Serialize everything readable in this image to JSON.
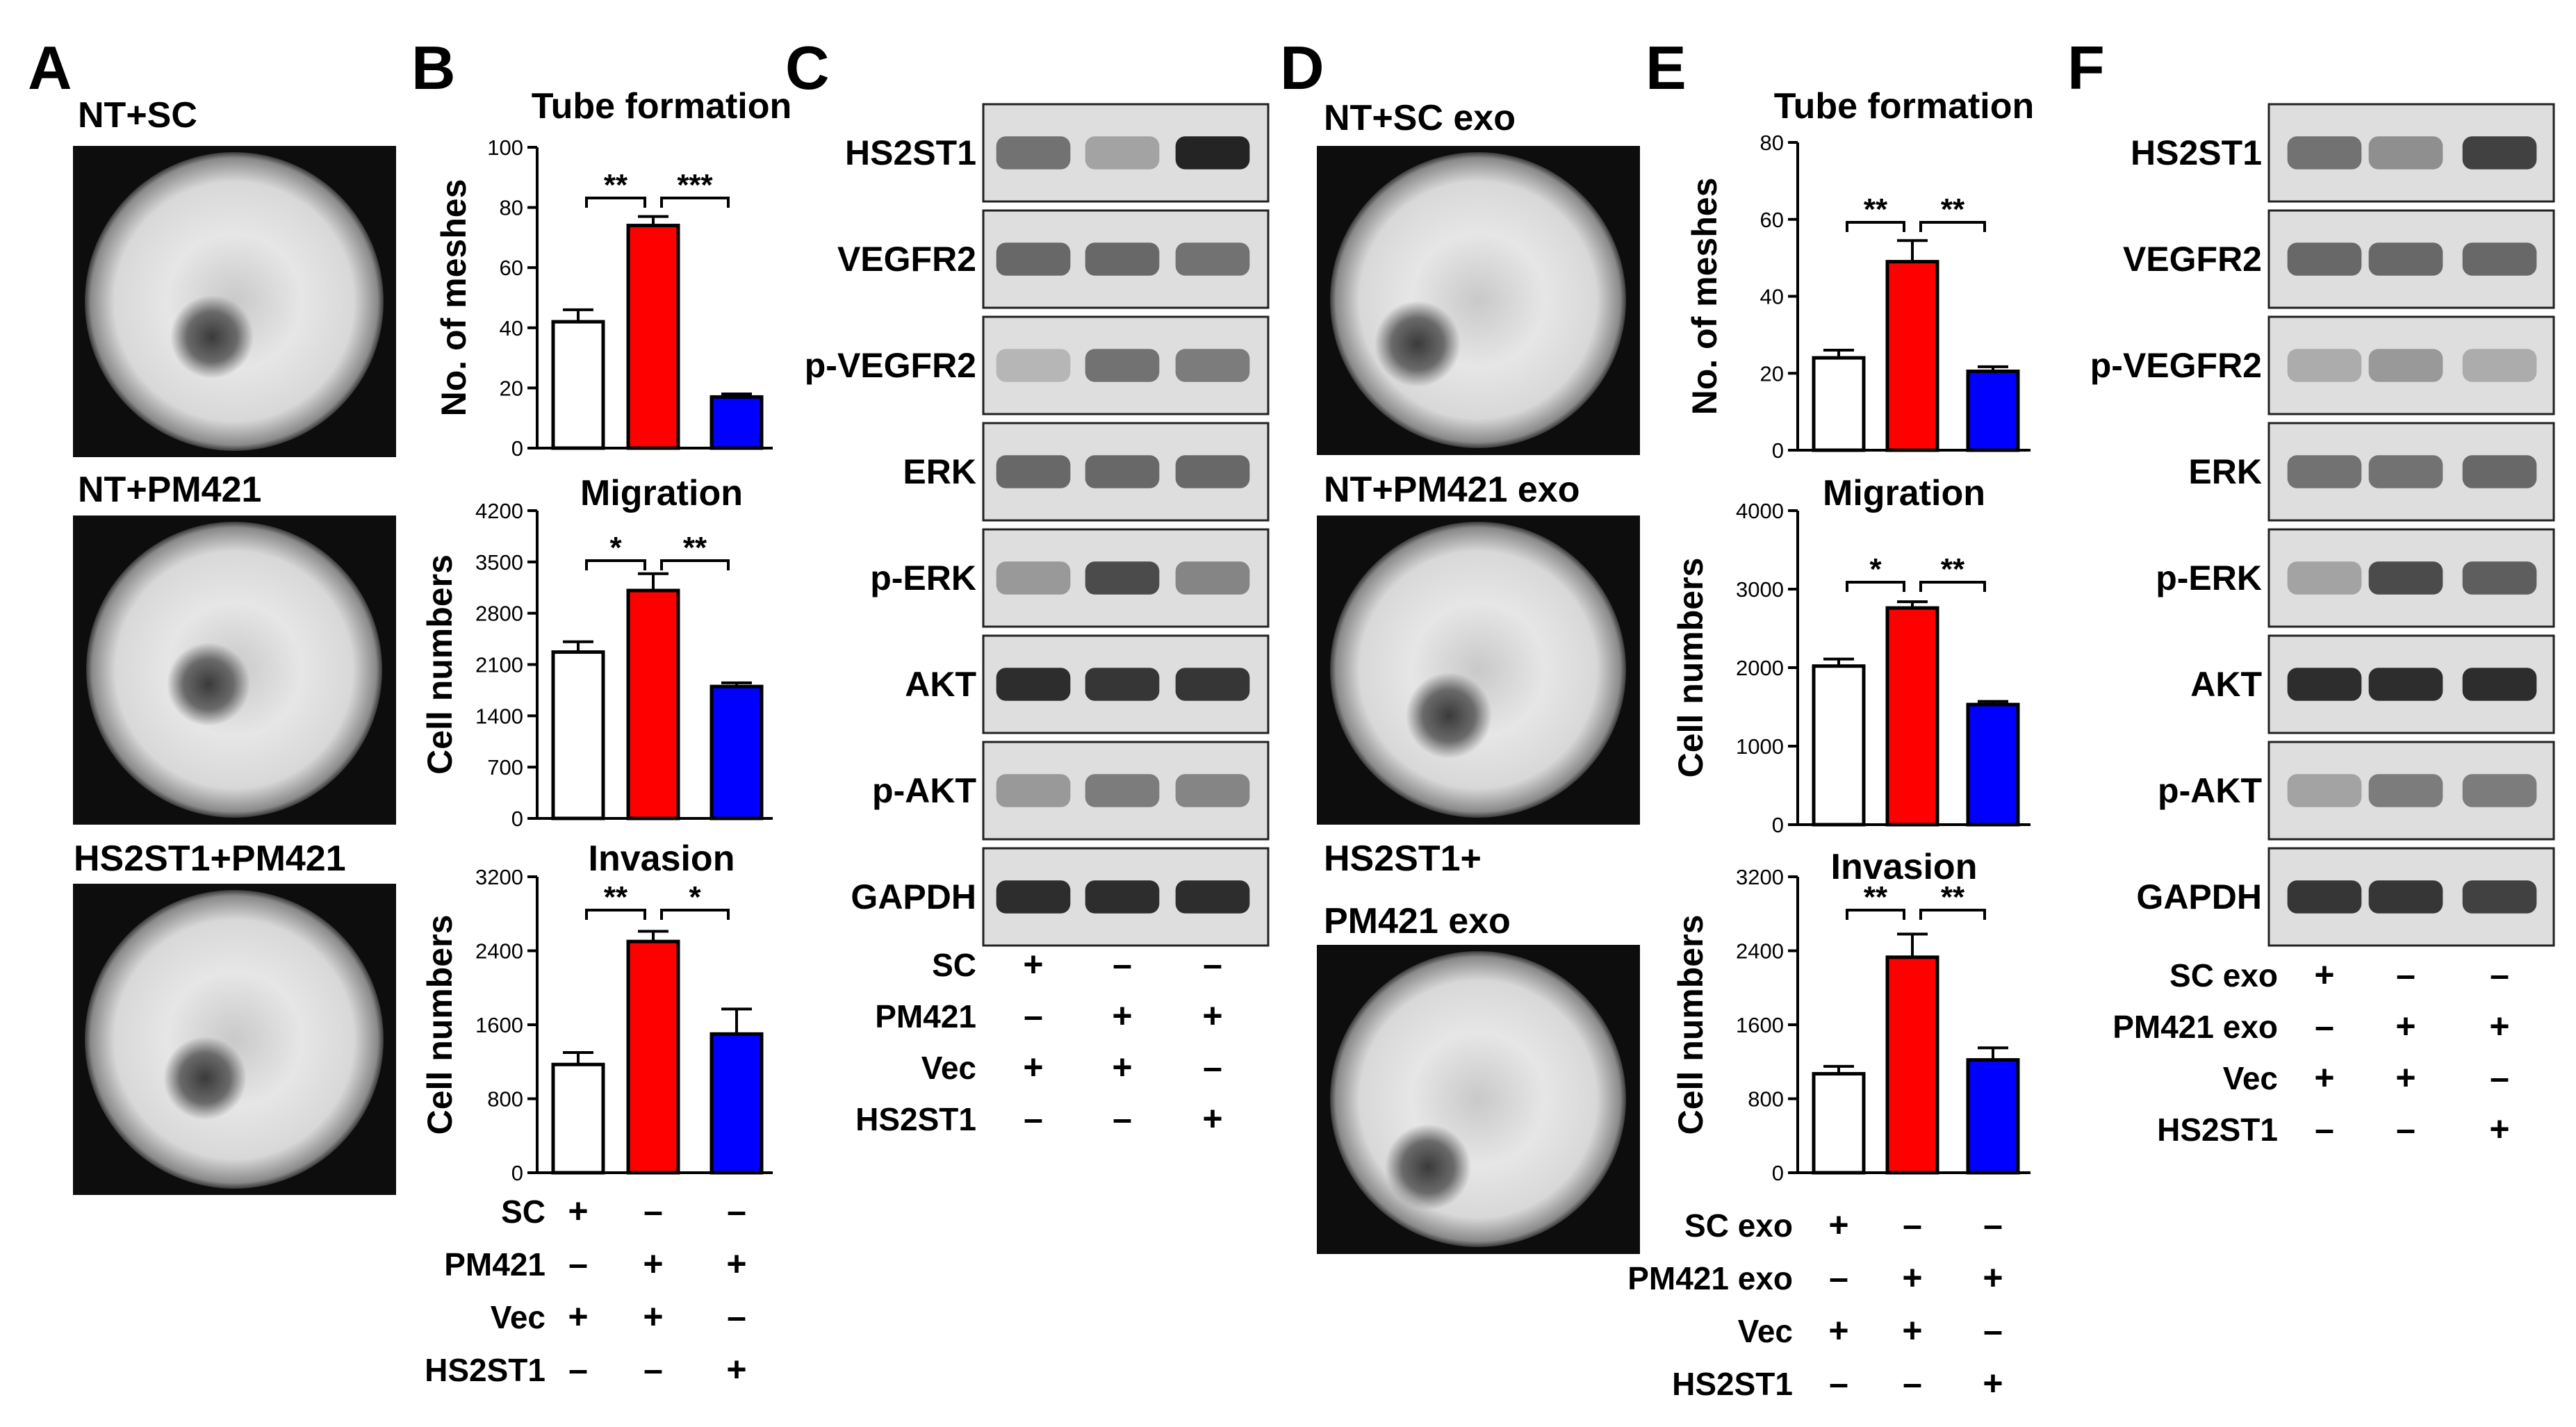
{
  "panels": {
    "A": {
      "label": "A",
      "images": [
        {
          "caption": "NT+SC"
        },
        {
          "caption": "NT+PM421"
        },
        {
          "caption": "HS2ST1+PM421"
        }
      ]
    },
    "B": {
      "label": "B",
      "conditions": [
        {
          "name": "SC",
          "signs": [
            "+",
            "–",
            "–"
          ]
        },
        {
          "name": "PM421",
          "signs": [
            "–",
            "+",
            "+"
          ]
        },
        {
          "name": "Vec",
          "signs": [
            "+",
            "+",
            "–"
          ]
        },
        {
          "name": "HS2ST1",
          "signs": [
            "–",
            "–",
            "+"
          ]
        }
      ]
    },
    "C": {
      "label": "C",
      "blot_labels": [
        "HS2ST1",
        "VEGFR2",
        "p-VEGFR2",
        "ERK",
        "p-ERK",
        "AKT",
        "p-AKT",
        "GAPDH"
      ],
      "conditions": [
        {
          "name": "SC",
          "signs": [
            "+",
            "–",
            "–"
          ]
        },
        {
          "name": "PM421",
          "signs": [
            "–",
            "+",
            "+"
          ]
        },
        {
          "name": "Vec",
          "signs": [
            "+",
            "+",
            "–"
          ]
        },
        {
          "name": "HS2ST1",
          "signs": [
            "–",
            "–",
            "+"
          ]
        }
      ]
    },
    "D": {
      "label": "D",
      "images": [
        {
          "caption": "NT+SC exo"
        },
        {
          "caption": "NT+PM421 exo"
        },
        {
          "caption": "HS2ST1+",
          "caption2": "PM421 exo"
        }
      ]
    },
    "E": {
      "label": "E",
      "conditions": [
        {
          "name": "SC exo",
          "signs": [
            "+",
            "–",
            "–"
          ]
        },
        {
          "name": "PM421 exo",
          "signs": [
            "–",
            "+",
            "+"
          ]
        },
        {
          "name": "Vec",
          "signs": [
            "+",
            "+",
            "–"
          ]
        },
        {
          "name": "HS2ST1",
          "signs": [
            "–",
            "–",
            "+"
          ]
        }
      ]
    },
    "F": {
      "label": "F",
      "blot_labels": [
        "HS2ST1",
        "VEGFR2",
        "p-VEGFR2",
        "ERK",
        "p-ERK",
        "AKT",
        "p-AKT",
        "GAPDH"
      ],
      "conditions": [
        {
          "name": "SC exo",
          "signs": [
            "+",
            "–",
            "–"
          ]
        },
        {
          "name": "PM421 exo",
          "signs": [
            "–",
            "+",
            "+"
          ]
        },
        {
          "name": "Vec",
          "signs": [
            "+",
            "+",
            "–"
          ]
        },
        {
          "name": "HS2ST1",
          "signs": [
            "–",
            "–",
            "+"
          ]
        }
      ]
    }
  },
  "chart_data": [
    {
      "panel": "B",
      "type": "bar",
      "title": "Tube formation",
      "ylabel": "No. of meshes",
      "categories": [
        "SC+Vec",
        "PM421+Vec",
        "PM421+HS2ST1"
      ],
      "values": [
        42,
        74,
        17
      ],
      "errors": [
        4,
        3,
        1
      ],
      "ylim": [
        0,
        100
      ],
      "yticks": [
        "0",
        "20",
        "40",
        "60",
        "80",
        "100"
      ],
      "bar_colors": [
        "#ffffff",
        "#ff0000",
        "#0000ff"
      ],
      "significance": [
        {
          "between": [
            0,
            1
          ],
          "label": "**"
        },
        {
          "between": [
            1,
            2
          ],
          "label": "***"
        }
      ]
    },
    {
      "panel": "B",
      "type": "bar",
      "title": "Migration",
      "ylabel": "Cell numbers",
      "categories": [
        "SC+Vec",
        "PM421+Vec",
        "PM421+HS2ST1"
      ],
      "values": [
        2270,
        3110,
        1800
      ],
      "errors": [
        140,
        230,
        50
      ],
      "ylim": [
        0,
        4200
      ],
      "yticks": [
        "0",
        "700",
        "1400",
        "2100",
        "2800",
        "3500",
        "4200"
      ],
      "bar_colors": [
        "#ffffff",
        "#ff0000",
        "#0000ff"
      ],
      "significance": [
        {
          "between": [
            0,
            1
          ],
          "label": "*"
        },
        {
          "between": [
            1,
            2
          ],
          "label": "**"
        }
      ]
    },
    {
      "panel": "B",
      "type": "bar",
      "title": "Invasion",
      "ylabel": "Cell numbers",
      "categories": [
        "SC+Vec",
        "PM421+Vec",
        "PM421+HS2ST1"
      ],
      "values": [
        1170,
        2500,
        1500
      ],
      "errors": [
        130,
        110,
        270
      ],
      "ylim": [
        0,
        3200
      ],
      "yticks": [
        "0",
        "800",
        "1600",
        "2400",
        "3200"
      ],
      "bar_colors": [
        "#ffffff",
        "#ff0000",
        "#0000ff"
      ],
      "significance": [
        {
          "between": [
            0,
            1
          ],
          "label": "**"
        },
        {
          "between": [
            1,
            2
          ],
          "label": "*"
        }
      ]
    },
    {
      "panel": "E",
      "type": "bar",
      "title": "Tube formation",
      "ylabel": "No. of meshes",
      "categories": [
        "SC exo+Vec",
        "PM421 exo+Vec",
        "PM421 exo+HS2ST1"
      ],
      "values": [
        24,
        49,
        20.5
      ],
      "errors": [
        2,
        5.5,
        1.2
      ],
      "ylim": [
        0,
        80
      ],
      "yticks": [
        "0",
        "20",
        "40",
        "60",
        "80"
      ],
      "bar_colors": [
        "#ffffff",
        "#ff0000",
        "#0000ff"
      ],
      "significance": [
        {
          "between": [
            0,
            1
          ],
          "label": "**"
        },
        {
          "between": [
            1,
            2
          ],
          "label": "**"
        }
      ]
    },
    {
      "panel": "E",
      "type": "bar",
      "title": "Migration",
      "ylabel": "Cell numbers",
      "categories": [
        "SC exo+Vec",
        "PM421 exo+Vec",
        "PM421 exo+HS2ST1"
      ],
      "values": [
        2020,
        2760,
        1530
      ],
      "errors": [
        90,
        80,
        40
      ],
      "ylim": [
        0,
        4000
      ],
      "yticks": [
        "0",
        "1000",
        "2000",
        "3000",
        "4000"
      ],
      "bar_colors": [
        "#ffffff",
        "#ff0000",
        "#0000ff"
      ],
      "significance": [
        {
          "between": [
            0,
            1
          ],
          "label": "*"
        },
        {
          "between": [
            1,
            2
          ],
          "label": "**"
        }
      ]
    },
    {
      "panel": "E",
      "type": "bar",
      "title": "Invasion",
      "ylabel": "Cell numbers",
      "categories": [
        "SC exo+Vec",
        "PM421 exo+Vec",
        "PM421 exo+HS2ST1"
      ],
      "values": [
        1070,
        2330,
        1220
      ],
      "errors": [
        80,
        250,
        130
      ],
      "ylim": [
        0,
        3200
      ],
      "yticks": [
        "0",
        "800",
        "1600",
        "2400",
        "3200"
      ],
      "bar_colors": [
        "#ffffff",
        "#ff0000",
        "#0000ff"
      ],
      "significance": [
        {
          "between": [
            0,
            1
          ],
          "label": "**"
        },
        {
          "between": [
            1,
            2
          ],
          "label": "**"
        }
      ]
    }
  ]
}
